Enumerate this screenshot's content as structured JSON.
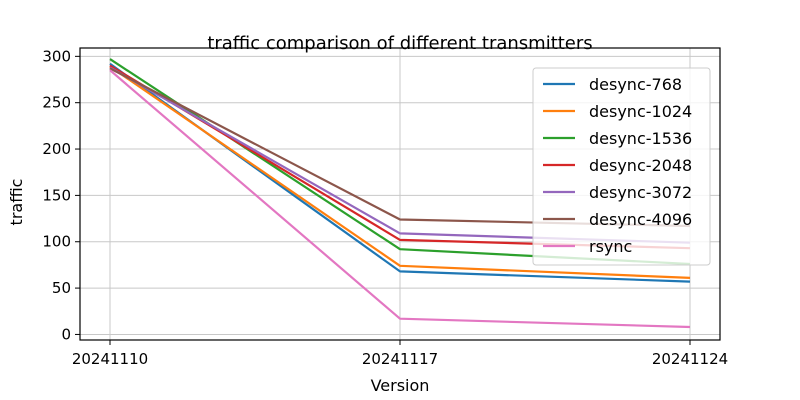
{
  "chart_data": {
    "type": "line",
    "title": "traffic comparison of different transmitters",
    "xlabel": "Version",
    "ylabel": "traffic",
    "categories": [
      "20241110",
      "20241117",
      "20241124"
    ],
    "ylim": [
      -6,
      309
    ],
    "yticks": [
      0,
      50,
      100,
      150,
      200,
      250,
      300
    ],
    "grid": true,
    "legend_position": "top-right",
    "series": [
      {
        "name": "desync-768",
        "color": "#1f77b4",
        "values": [
          292,
          68,
          57
        ]
      },
      {
        "name": "desync-1024",
        "color": "#ff7f0e",
        "values": [
          289,
          74,
          61
        ]
      },
      {
        "name": "desync-1536",
        "color": "#2ca02c",
        "values": [
          297,
          92,
          76
        ]
      },
      {
        "name": "desync-2048",
        "color": "#d62728",
        "values": [
          290,
          102,
          93
        ]
      },
      {
        "name": "desync-3072",
        "color": "#9467bd",
        "values": [
          288,
          109,
          99
        ]
      },
      {
        "name": "desync-4096",
        "color": "#8c564b",
        "values": [
          287,
          124,
          117
        ]
      },
      {
        "name": "rsync",
        "color": "#e377c2",
        "values": [
          285,
          17,
          8
        ]
      }
    ]
  }
}
